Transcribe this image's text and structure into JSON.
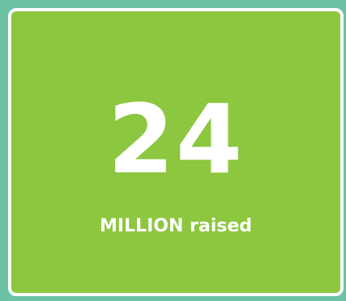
{
  "stat": {
    "number": "24",
    "caption": "MILLION raised"
  },
  "colors": {
    "background": "#6cc3a4",
    "card": "#8dc63f",
    "border": "#ffffff",
    "text": "#ffffff"
  }
}
